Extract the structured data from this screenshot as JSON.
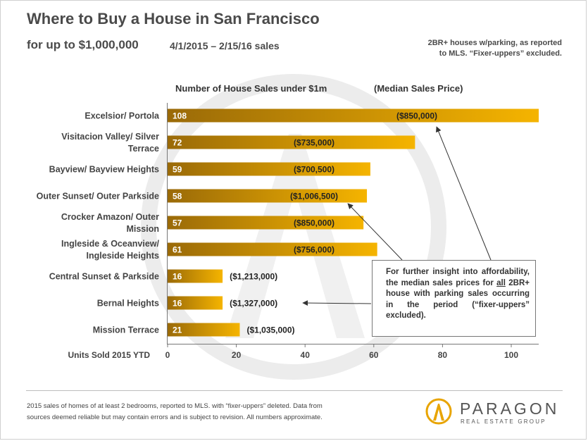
{
  "header": {
    "title": "Where to Buy a House in San Francisco",
    "subtitle": "for up to $1,000,000",
    "dates": "4/1/2015 – 2/15/16 sales",
    "note_line1": "2BR+ houses w/parking, as reported",
    "note_line2": "to MLS. “Fixer-uppers” excluded."
  },
  "chart_data": {
    "type": "bar",
    "orientation": "horizontal",
    "series_header": "Number of House Sales under $1m",
    "label_header": "(Median Sales Price)",
    "xlabel": "Units Sold 2015 YTD",
    "xlim": [
      0,
      110
    ],
    "xticks": [
      0,
      20,
      40,
      60,
      80,
      100
    ],
    "categories": [
      "Excelsior/ Portola",
      "Visitacion Valley/ Silver Terrace",
      "Bayview/ Bayview Heights",
      "Outer Sunset/ Outer Parkside",
      "Crocker Amazon/ Outer Mission",
      "Ingleside & Oceanview/ Ingleside Heights",
      "Central Sunset  & Parkside",
      "Bernal Heights",
      "Mission Terrace"
    ],
    "category_lines": [
      [
        "Excelsior/ Portola"
      ],
      [
        "Visitacion Valley/ Silver",
        "Terrace"
      ],
      [
        "Bayview/ Bayview Heights"
      ],
      [
        "Outer Sunset/ Outer Parkside"
      ],
      [
        "Crocker Amazon/ Outer",
        "Mission"
      ],
      [
        "Ingleside & Oceanview/",
        "Ingleside Heights"
      ],
      [
        "Central Sunset  & Parkside"
      ],
      [
        "Bernal Heights"
      ],
      [
        "Mission Terrace"
      ]
    ],
    "values": [
      108,
      72,
      59,
      58,
      57,
      61,
      16,
      16,
      21
    ],
    "value_labels": [
      "108",
      "72",
      "59",
      "58",
      "57",
      "61",
      "16",
      "16",
      "21"
    ],
    "median_prices": [
      "($850,000)",
      "($735,000)",
      "($700,500)",
      "($1,006,500)",
      "($850,000)",
      "($756,000)",
      "($1,213,000)",
      "($1,327,000)",
      "($1,035,000)"
    ],
    "bar_gradient": [
      "#9a6a08",
      "#f5b400"
    ]
  },
  "callout": {
    "text_before": "For further insight into affordability, the median sales prices for ",
    "emphasis": "all",
    "text_after": " 2BR+ house with parking sales occurring in the period (“fixer-uppers” excluded)."
  },
  "footer": {
    "line1": "2015 sales of homes of at least 2 bedrooms, reported to MLS.  with “fixer-uppers” deleted. Data from",
    "line2": "sources deemed reliable but may contain errors and is subject to revision. All numbers approximate."
  },
  "logo": {
    "name": "PARAGON",
    "tagline": "REAL ESTATE GROUP",
    "color": "#e8a400"
  }
}
